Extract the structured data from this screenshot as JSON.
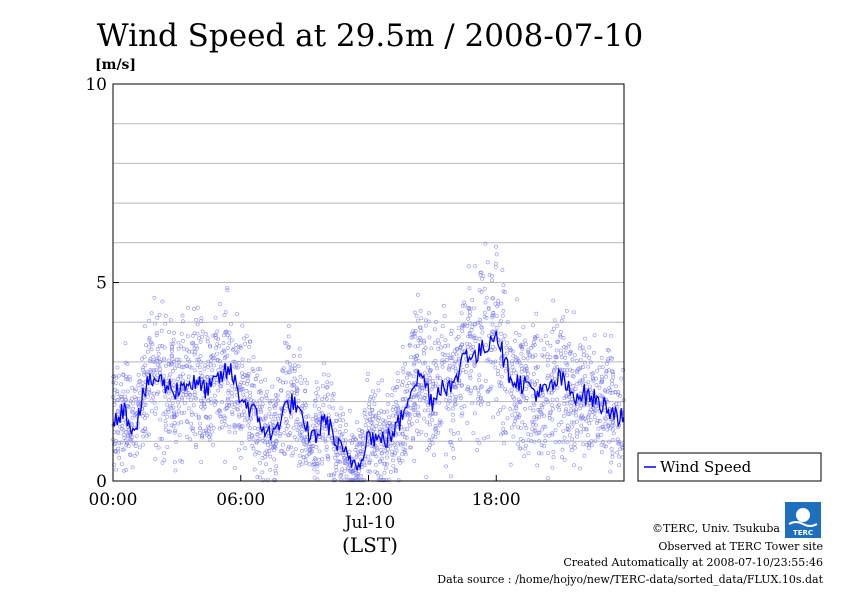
{
  "chart_data": {
    "type": "line",
    "title": "Wind Speed at 29.5m / 2008-07-10",
    "ylabel": "[m/s]",
    "xlabel_date": "Jul-10",
    "xlabel_unit": "(LST)",
    "ylim": [
      0,
      10
    ],
    "yticks": [
      "0",
      "5",
      "10"
    ],
    "xlim": [
      "00:00",
      "24:00"
    ],
    "xticks": [
      "00:00",
      "06:00",
      "12:00",
      "18:00"
    ],
    "grid": true,
    "legend_position": "right",
    "series": [
      {
        "name": "Wind Speed",
        "color": "#0000ff",
        "scatter_color": "#7b7bf0",
        "x": [
          "00:00",
          "00:30",
          "01:00",
          "01:30",
          "02:00",
          "02:30",
          "03:00",
          "03:30",
          "04:00",
          "04:30",
          "05:00",
          "05:30",
          "06:00",
          "06:30",
          "07:00",
          "07:30",
          "08:00",
          "08:30",
          "09:00",
          "09:30",
          "10:00",
          "10:30",
          "11:00",
          "11:30",
          "12:00",
          "12:30",
          "13:00",
          "13:30",
          "14:00",
          "14:30",
          "15:00",
          "15:30",
          "16:00",
          "16:30",
          "17:00",
          "17:30",
          "18:00",
          "18:30",
          "19:00",
          "19:30",
          "20:00",
          "20:30",
          "21:00",
          "21:30",
          "22:00",
          "22:30",
          "23:00",
          "23:30",
          "24:00"
        ],
        "values": [
          1.6,
          1.8,
          1.3,
          2.3,
          2.6,
          2.4,
          2.3,
          2.5,
          2.4,
          2.3,
          2.6,
          2.8,
          2.1,
          1.8,
          1.4,
          1.1,
          1.8,
          2.0,
          1.3,
          1.1,
          1.6,
          0.9,
          0.6,
          0.4,
          1.2,
          1.0,
          1.1,
          1.5,
          2.4,
          2.7,
          2.0,
          2.5,
          2.3,
          3.3,
          3.1,
          3.4,
          3.8,
          2.8,
          2.5,
          2.4,
          2.2,
          2.3,
          2.6,
          2.2,
          2.2,
          2.1,
          1.9,
          1.8,
          1.5
        ]
      }
    ]
  },
  "footer": {
    "copyright": "©TERC, Univ. Tsukuba",
    "observed": "Observed at TERC Tower site",
    "created": "Created Automatically at 2008-07-10/23:55:46",
    "source": "Data source : /home/hojyo/new/TERC-data/sorted_data/FLUX.10s.dat"
  },
  "logo": {
    "text": "TERC",
    "color": "#1f6fbf"
  }
}
